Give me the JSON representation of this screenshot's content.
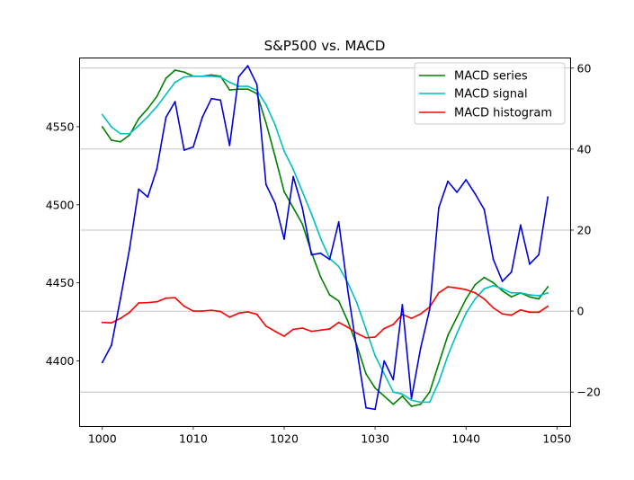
{
  "chart_data": {
    "type": "line",
    "title": "S&P500 vs. MACD",
    "xlabel": "",
    "ylabel": "",
    "y2label": "",
    "xlim": [
      997.5,
      1051.5
    ],
    "ylim": [
      4358,
      4594
    ],
    "y2lim": [
      -28.5,
      62.5
    ],
    "xticks": [
      1000,
      1010,
      1020,
      1030,
      1040,
      1050
    ],
    "yticks": [
      4400,
      4450,
      4500,
      4550
    ],
    "y2ticks": [
      -20,
      0,
      20,
      40,
      60
    ],
    "grid": "horizontal lines at right-axis ticks",
    "legend": "top-right",
    "x": [
      1000,
      1001,
      1002,
      1003,
      1004,
      1005,
      1006,
      1007,
      1008,
      1009,
      1010,
      1011,
      1012,
      1013,
      1014,
      1015,
      1016,
      1017,
      1018,
      1019,
      1020,
      1021,
      1022,
      1023,
      1024,
      1025,
      1026,
      1027,
      1028,
      1029,
      1030,
      1031,
      1032,
      1033,
      1034,
      1035,
      1036,
      1037,
      1038,
      1039,
      1040,
      1041,
      1042,
      1043,
      1044,
      1045,
      1046,
      1047,
      1048,
      1049
    ],
    "price": {
      "name": "",
      "axis": "left",
      "color": "#0000dd",
      "values": [
        4399,
        4410,
        4440,
        4472,
        4510,
        4505,
        4523,
        4556,
        4566,
        4535,
        4537,
        4556,
        4568,
        4567,
        4538,
        4582,
        4589,
        4577,
        4513,
        4501,
        4478,
        4518,
        4498,
        4468,
        4469,
        4465,
        4489,
        4445,
        4407,
        4370,
        4369,
        4400,
        4388,
        4436,
        4376,
        4408,
        4433,
        4498,
        4515,
        4508,
        4516,
        4507,
        4497,
        4465,
        4451,
        4457,
        4487,
        4462,
        4468,
        4505
      ]
    },
    "series": [
      {
        "name": "MACD series",
        "axis": "right",
        "color": "#008000",
        "values": [
          45.5,
          42.2,
          41.8,
          43.5,
          47.5,
          50.0,
          53.0,
          57.5,
          59.5,
          59.0,
          58.0,
          58.0,
          58.3,
          58.0,
          54.6,
          54.8,
          54.8,
          53.7,
          46.5,
          38.2,
          29.5,
          25.5,
          21.5,
          14.5,
          8.5,
          4.0,
          2.5,
          -2.5,
          -8.5,
          -15.5,
          -19.0,
          -21.0,
          -23.0,
          -21.0,
          -23.5,
          -23.0,
          -20.0,
          -13.0,
          -6.0,
          -1.5,
          3.0,
          6.5,
          8.3,
          7.0,
          5.0,
          3.5,
          4.5,
          3.5,
          3.0,
          6.0
        ]
      },
      {
        "name": "MACD signal",
        "axis": "right",
        "color": "#00bfbf",
        "values": [
          48.5,
          45.5,
          43.8,
          43.8,
          45.8,
          48.0,
          50.5,
          53.5,
          56.5,
          57.8,
          58.0,
          58.0,
          58.0,
          57.8,
          56.5,
          55.5,
          55.5,
          54.5,
          51.0,
          46.0,
          39.5,
          35.0,
          29.5,
          24.0,
          18.0,
          13.0,
          11.0,
          7.0,
          2.0,
          -4.5,
          -11.0,
          -15.5,
          -20.0,
          -20.5,
          -22.0,
          -22.5,
          -22.5,
          -17.5,
          -11.0,
          -5.5,
          -0.5,
          3.0,
          5.5,
          6.3,
          5.5,
          4.5,
          4.5,
          4.0,
          3.8,
          4.5
        ]
      },
      {
        "name": "MACD histogram",
        "axis": "right",
        "color": "#ff0000",
        "values": [
          -2.8,
          -2.9,
          -1.8,
          -0.3,
          2.0,
          2.1,
          2.3,
          3.2,
          3.3,
          1.2,
          0.0,
          0.0,
          0.2,
          -0.1,
          -1.5,
          -0.5,
          -0.2,
          -0.8,
          -3.7,
          -5.0,
          -6.2,
          -4.5,
          -4.2,
          -5.0,
          -4.7,
          -4.4,
          -2.8,
          -4.0,
          -5.5,
          -6.6,
          -6.4,
          -4.3,
          -3.3,
          -0.8,
          -1.8,
          -0.7,
          1.0,
          4.5,
          6.0,
          5.7,
          5.3,
          4.5,
          3.0,
          0.8,
          -0.7,
          -1.0,
          0.3,
          -0.3,
          -0.3,
          1.2
        ]
      }
    ]
  }
}
